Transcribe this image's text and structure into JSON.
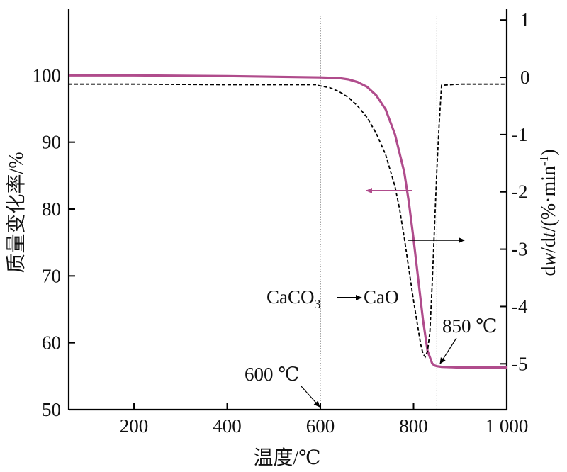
{
  "chart_data": {
    "type": "line",
    "xlabel": "温度/℃",
    "ylabel_left": "质量变化率/%",
    "ylabel_right_parts": [
      "d",
      "w",
      "/d",
      "t",
      "/(%·min",
      "-1",
      ")"
    ],
    "xlim": [
      60,
      1000
    ],
    "ylim_left": [
      50,
      110
    ],
    "ylim_right": [
      -5.8,
      1.2
    ],
    "x_ticks": [
      200,
      400,
      600,
      800,
      1000
    ],
    "x_tick_labels": [
      "200",
      "400",
      "600",
      "800",
      "1 000"
    ],
    "y_left_ticks": [
      50,
      60,
      70,
      80,
      90,
      100
    ],
    "y_left_tick_labels": [
      "50",
      "60",
      "70",
      "80",
      "90",
      "100"
    ],
    "y_right_ticks": [
      1,
      0,
      -1,
      -2,
      -3,
      -4,
      -5
    ],
    "y_right_tick_labels": [
      "1",
      "0",
      "-1",
      "-2",
      "-3",
      "-4",
      "-5"
    ],
    "vlines": [
      600,
      850
    ],
    "colors": {
      "tg": "#b04c8c",
      "dtg": "#000000",
      "axis": "#000000",
      "guide": "#555555"
    },
    "series": [
      {
        "axis": "left",
        "style": "solid",
        "x": [
          60,
          200,
          400,
          600,
          640,
          660,
          680,
          700,
          720,
          740,
          760,
          780,
          790,
          800,
          810,
          820,
          830,
          840,
          845,
          850,
          860,
          900,
          1000
        ],
        "y": [
          100,
          100,
          99.9,
          99.7,
          99.6,
          99.4,
          99.0,
          98.3,
          97.0,
          94.9,
          91.2,
          85.5,
          81.0,
          75.5,
          69.5,
          63.5,
          58.8,
          56.9,
          56.6,
          56.5,
          56.4,
          56.3,
          56.3
        ]
      },
      {
        "axis": "right",
        "style": "dashed",
        "x": [
          60,
          200,
          400,
          590,
          600,
          620,
          640,
          660,
          680,
          700,
          720,
          740,
          760,
          770,
          780,
          790,
          800,
          810,
          815,
          820,
          825,
          830,
          835,
          840,
          845,
          850,
          855,
          860,
          900,
          1000
        ],
        "y": [
          -0.12,
          -0.12,
          -0.13,
          -0.13,
          -0.15,
          -0.18,
          -0.25,
          -0.35,
          -0.5,
          -0.7,
          -0.98,
          -1.35,
          -1.9,
          -2.3,
          -2.8,
          -3.35,
          -3.9,
          -4.4,
          -4.65,
          -4.82,
          -4.88,
          -4.78,
          -4.45,
          -3.6,
          -2.6,
          -1.6,
          -0.8,
          -0.14,
          -0.12,
          -0.12
        ]
      }
    ],
    "annotations": {
      "reaction_left": "CaCO",
      "reaction_sub": "3",
      "reaction_right": "CaO",
      "label_600": "600 ℃",
      "label_850": "850 ℃"
    }
  }
}
